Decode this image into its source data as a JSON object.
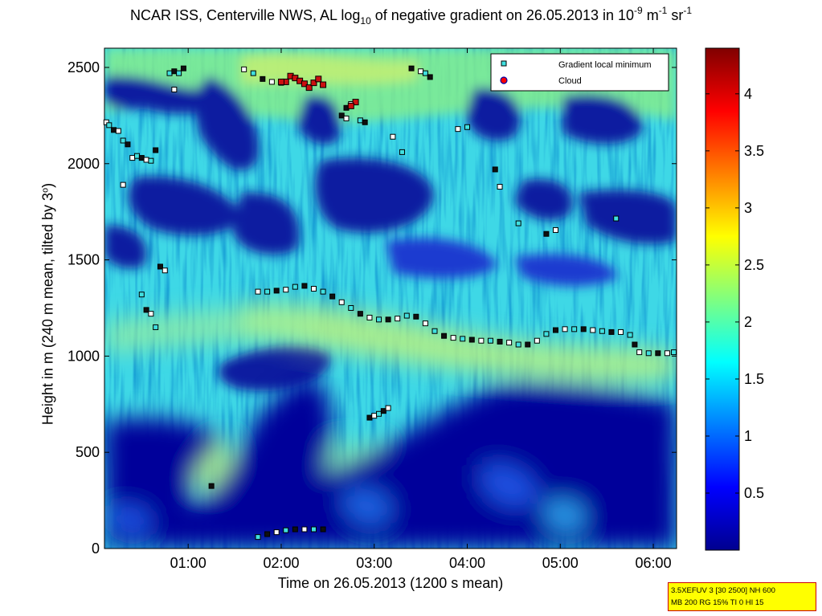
{
  "chart_data": {
    "type": "heatmap",
    "title": {
      "pre": "NCAR ISS, Centerville NWS, AL log",
      "sub": "10",
      "mid": " of negative gradient on 26.05.2013 in 10",
      "sup1": "-9",
      "mid2": " m",
      "sup2": "-1",
      "mid3": " sr",
      "sup3": "-1"
    },
    "xlabel": "Time on 26.05.2013 (1200 s mean)",
    "ylabel": {
      "pre": "Height in m (240 m mean, tilted by 3",
      "sup": "o",
      "post": ")"
    },
    "x_ticks": [
      "01:00",
      "02:00",
      "03:00",
      "04:00",
      "05:00",
      "06:00"
    ],
    "x_tick_hours": [
      1,
      2,
      3,
      4,
      5,
      6
    ],
    "xlim_hours": [
      0.1,
      6.25
    ],
    "y_ticks": [
      0,
      500,
      1000,
      1500,
      2000,
      2500
    ],
    "ylim": [
      0,
      2600
    ],
    "colorbar": {
      "ticks": [
        0.5,
        1,
        1.5,
        2,
        2.5,
        3,
        3.5,
        4
      ],
      "tick_labels": [
        "0.5",
        "1",
        "1.5",
        "2",
        "2.5",
        "3",
        "3.5",
        "4"
      ],
      "range": [
        0,
        4.4
      ],
      "colormap": "jet"
    },
    "legend": {
      "placement": "top-right",
      "entries": [
        {
          "label": "Gradient local minimum",
          "marker": "square",
          "color": "#40e0e0"
        },
        {
          "label": "Cloud",
          "marker": "circle",
          "color": "#ff0000"
        }
      ]
    },
    "series": [
      {
        "name": "Gradient local minimum",
        "points": [
          [
            1.75,
            1335
          ],
          [
            1.85,
            1335
          ],
          [
            1.95,
            1340
          ],
          [
            2.05,
            1345
          ],
          [
            2.15,
            1360
          ],
          [
            2.25,
            1365
          ],
          [
            2.35,
            1350
          ],
          [
            2.45,
            1335
          ],
          [
            2.55,
            1310
          ],
          [
            2.65,
            1280
          ],
          [
            2.75,
            1250
          ],
          [
            2.85,
            1220
          ],
          [
            2.95,
            1200
          ],
          [
            3.05,
            1190
          ],
          [
            3.15,
            1190
          ],
          [
            3.25,
            1195
          ],
          [
            3.35,
            1210
          ],
          [
            3.45,
            1205
          ],
          [
            3.55,
            1170
          ],
          [
            3.65,
            1130
          ],
          [
            3.75,
            1105
          ],
          [
            3.85,
            1095
          ],
          [
            3.95,
            1090
          ],
          [
            4.05,
            1085
          ],
          [
            4.15,
            1080
          ],
          [
            4.25,
            1080
          ],
          [
            4.35,
            1075
          ],
          [
            4.45,
            1070
          ],
          [
            4.55,
            1060
          ],
          [
            4.65,
            1060
          ],
          [
            4.75,
            1080
          ],
          [
            4.85,
            1115
          ],
          [
            4.95,
            1135
          ],
          [
            5.05,
            1140
          ],
          [
            5.15,
            1140
          ],
          [
            5.25,
            1140
          ],
          [
            5.35,
            1135
          ],
          [
            5.45,
            1130
          ],
          [
            5.55,
            1125
          ],
          [
            5.65,
            1125
          ],
          [
            5.75,
            1110
          ],
          [
            5.8,
            1060
          ],
          [
            5.85,
            1020
          ],
          [
            5.95,
            1015
          ],
          [
            6.05,
            1015
          ],
          [
            6.15,
            1015
          ],
          [
            6.22,
            1020
          ],
          [
            2.95,
            680
          ],
          [
            3.0,
            690
          ],
          [
            3.05,
            700
          ],
          [
            3.1,
            715
          ],
          [
            3.15,
            730
          ],
          [
            1.75,
            60
          ],
          [
            1.85,
            75
          ],
          [
            1.95,
            85
          ],
          [
            2.05,
            95
          ],
          [
            2.15,
            100
          ],
          [
            2.25,
            100
          ],
          [
            2.35,
            100
          ],
          [
            2.45,
            100
          ],
          [
            0.12,
            2215
          ],
          [
            0.15,
            2200
          ],
          [
            0.2,
            2175
          ],
          [
            0.25,
            2170
          ],
          [
            0.3,
            2120
          ],
          [
            0.35,
            2100
          ],
          [
            0.4,
            2030
          ],
          [
            0.45,
            2040
          ],
          [
            0.5,
            2030
          ],
          [
            0.55,
            2020
          ],
          [
            0.6,
            2015
          ],
          [
            0.65,
            2070
          ],
          [
            0.3,
            1890
          ],
          [
            0.5,
            1320
          ],
          [
            0.55,
            1240
          ],
          [
            0.6,
            1220
          ],
          [
            0.65,
            1150
          ],
          [
            0.7,
            1465
          ],
          [
            0.75,
            1445
          ],
          [
            0.8,
            2470
          ],
          [
            0.85,
            2480
          ],
          [
            0.85,
            2385
          ],
          [
            0.9,
            2470
          ],
          [
            0.95,
            2495
          ],
          [
            1.6,
            2490
          ],
          [
            1.7,
            2470
          ],
          [
            1.8,
            2440
          ],
          [
            1.9,
            2425
          ],
          [
            2.0,
            2420
          ],
          [
            2.7,
            2290
          ],
          [
            2.75,
            2310
          ],
          [
            2.8,
            2320
          ],
          [
            2.65,
            2250
          ],
          [
            2.7,
            2235
          ],
          [
            2.85,
            2225
          ],
          [
            2.9,
            2215
          ],
          [
            3.2,
            2140
          ],
          [
            3.3,
            2060
          ],
          [
            3.4,
            2495
          ],
          [
            3.5,
            2480
          ],
          [
            3.55,
            2470
          ],
          [
            3.6,
            2450
          ],
          [
            3.9,
            2180
          ],
          [
            4.0,
            2190
          ],
          [
            4.3,
            1970
          ],
          [
            4.35,
            1880
          ],
          [
            4.55,
            1690
          ],
          [
            4.85,
            1635
          ],
          [
            4.95,
            1655
          ],
          [
            5.6,
            1715
          ],
          [
            1.25,
            325
          ]
        ]
      },
      {
        "name": "Cloud",
        "points": [
          [
            2.05,
            2425
          ],
          [
            2.1,
            2455
          ],
          [
            2.15,
            2445
          ],
          [
            2.2,
            2430
          ],
          [
            2.25,
            2415
          ],
          [
            2.3,
            2395
          ],
          [
            2.35,
            2420
          ],
          [
            2.4,
            2440
          ],
          [
            2.45,
            2410
          ],
          [
            2.0,
            2425
          ],
          [
            2.8,
            2320
          ],
          [
            2.75,
            2300
          ]
        ]
      }
    ]
  },
  "info_box": {
    "line1": "3.5XEFUV 3 [30 2500] NH 600",
    "line2": "MB 200 RG 15% TI 0 HI 15"
  }
}
